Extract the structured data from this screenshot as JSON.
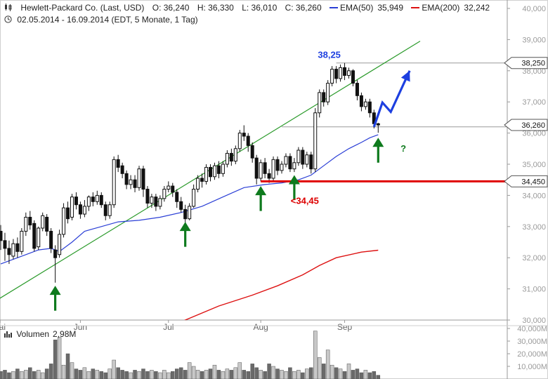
{
  "header": {
    "line1": {
      "title": "Hewlett-Packard Co. (Last, USD)",
      "open": "O: 36,240",
      "high": "H: 36,330",
      "low": "L: 36,010",
      "close": "C: 36,260",
      "ema50_label": "EMA(50)",
      "ema50_value": "35,949",
      "ema200_label": "EMA(200)",
      "ema200_value": "32,242"
    },
    "line2": "02.05.2014 - 16.09.2014 (EDT, 5 Monate, 1 Tag)",
    "icons": [
      "candlestick-icon",
      "clock-icon"
    ]
  },
  "colors": {
    "ema50": "#2b3fd6",
    "ema200": "#dd1111",
    "trendline": "#2a9a2a",
    "support": "#e00000",
    "arrows_up": "#0e7a1d",
    "arrow_forecast": "#1d3fe0",
    "volume": "#8a8a8a"
  },
  "chart_data": [
    {
      "type": "candlestick",
      "title": "",
      "ylim": [
        30000,
        40000
      ],
      "y_ticks": [
        "40,000",
        "39,000",
        "38,000",
        "37,000",
        "36,000",
        "35,000",
        "34,000",
        "33,000",
        "32,000",
        "31,000",
        "30,000"
      ],
      "x_ticks": [
        "Mai",
        "Jun",
        "Jul",
        "Aug",
        "Sep"
      ],
      "candles": [
        [
          32.85,
          32.55,
          33.05,
          32.25
        ],
        [
          32.55,
          32.3,
          32.8,
          31.9
        ],
        [
          32.3,
          32.1,
          32.55,
          31.8
        ],
        [
          32.05,
          32.45,
          32.6,
          31.95
        ],
        [
          32.45,
          32.2,
          32.65,
          32.0
        ],
        [
          32.2,
          32.85,
          32.95,
          32.1
        ],
        [
          32.85,
          33.3,
          33.45,
          32.7
        ],
        [
          33.3,
          33.05,
          33.5,
          32.9
        ],
        [
          33.1,
          32.3,
          33.2,
          32.2
        ],
        [
          32.35,
          32.95,
          33.0,
          32.25
        ],
        [
          32.95,
          33.35,
          33.45,
          32.85
        ],
        [
          33.3,
          32.85,
          33.4,
          32.7
        ],
        [
          32.85,
          32.3,
          32.95,
          32.15
        ],
        [
          32.25,
          32.0,
          32.4,
          31.2
        ],
        [
          32.1,
          32.75,
          32.9,
          32.0
        ],
        [
          32.75,
          33.6,
          33.75,
          32.65
        ],
        [
          33.6,
          33.25,
          33.8,
          33.1
        ],
        [
          33.3,
          33.95,
          34.05,
          33.2
        ],
        [
          33.95,
          33.7,
          34.1,
          33.55
        ],
        [
          33.7,
          33.4,
          33.8,
          33.25
        ],
        [
          33.4,
          33.65,
          33.85,
          33.3
        ],
        [
          33.65,
          33.95,
          34.0,
          33.5
        ],
        [
          33.95,
          33.8,
          34.1,
          33.65
        ],
        [
          33.8,
          34.0,
          34.15,
          33.7
        ],
        [
          34.0,
          33.7,
          34.1,
          33.6
        ],
        [
          33.7,
          33.35,
          33.8,
          33.2
        ],
        [
          33.35,
          33.7,
          33.8,
          33.25
        ],
        [
          33.7,
          35.15,
          35.25,
          33.6
        ],
        [
          35.15,
          34.9,
          35.3,
          34.75
        ],
        [
          34.95,
          34.7,
          35.05,
          34.55
        ],
        [
          34.7,
          34.35,
          34.8,
          34.2
        ],
        [
          34.35,
          34.5,
          34.65,
          34.2
        ],
        [
          34.5,
          34.25,
          34.65,
          34.1
        ],
        [
          34.25,
          34.85,
          34.95,
          34.15
        ],
        [
          34.85,
          34.2,
          34.95,
          33.95
        ],
        [
          34.2,
          33.75,
          34.3,
          33.6
        ],
        [
          33.75,
          33.95,
          34.05,
          33.6
        ],
        [
          33.95,
          33.65,
          34.05,
          33.5
        ],
        [
          33.65,
          33.9,
          34.0,
          33.55
        ],
        [
          33.9,
          34.2,
          34.3,
          33.8
        ],
        [
          34.2,
          34.3,
          34.45,
          34.1
        ],
        [
          34.3,
          34.1,
          34.4,
          33.95
        ],
        [
          34.1,
          33.8,
          34.2,
          33.6
        ],
        [
          33.8,
          33.55,
          33.95,
          33.45
        ],
        [
          33.55,
          33.25,
          33.7,
          33.1
        ],
        [
          33.25,
          33.65,
          33.75,
          33.2
        ],
        [
          33.65,
          34.2,
          34.35,
          33.6
        ],
        [
          34.2,
          34.55,
          34.65,
          34.1
        ],
        [
          34.55,
          34.45,
          34.7,
          34.25
        ],
        [
          34.45,
          34.9,
          35.0,
          34.35
        ],
        [
          34.9,
          34.6,
          35.0,
          34.45
        ],
        [
          34.6,
          34.95,
          35.05,
          34.5
        ],
        [
          34.95,
          34.7,
          35.1,
          34.55
        ],
        [
          34.7,
          35.0,
          35.1,
          34.6
        ],
        [
          35.0,
          35.35,
          35.45,
          34.9
        ],
        [
          35.35,
          35.1,
          35.5,
          34.95
        ],
        [
          35.1,
          35.5,
          35.6,
          35.0
        ],
        [
          35.5,
          36.0,
          36.1,
          35.4
        ],
        [
          36.0,
          35.9,
          36.25,
          35.75
        ],
        [
          35.9,
          35.6,
          36.0,
          35.4
        ],
        [
          35.6,
          35.2,
          35.7,
          35.05
        ],
        [
          35.2,
          34.55,
          35.3,
          34.35
        ],
        [
          34.55,
          35.05,
          35.15,
          34.45
        ],
        [
          35.05,
          34.7,
          35.2,
          34.55
        ],
        [
          34.7,
          34.55,
          34.85,
          34.4
        ],
        [
          34.55,
          35.15,
          35.25,
          34.45
        ],
        [
          35.15,
          34.8,
          35.25,
          34.65
        ],
        [
          34.8,
          35.0,
          35.1,
          34.7
        ],
        [
          35.0,
          35.25,
          35.35,
          34.9
        ],
        [
          35.25,
          34.85,
          35.35,
          34.75
        ],
        [
          34.85,
          35.05,
          35.2,
          34.75
        ],
        [
          35.05,
          35.45,
          35.55,
          34.95
        ],
        [
          35.45,
          35.0,
          35.55,
          34.85
        ],
        [
          35.0,
          35.3,
          35.4,
          34.9
        ],
        [
          35.3,
          34.85,
          35.4,
          34.7
        ],
        [
          34.85,
          36.65,
          36.8,
          34.75
        ],
        [
          36.65,
          37.3,
          37.4,
          36.5
        ],
        [
          37.3,
          37.0,
          37.4,
          36.85
        ],
        [
          37.0,
          37.6,
          37.7,
          36.9
        ],
        [
          37.6,
          38.05,
          38.15,
          37.5
        ],
        [
          38.05,
          37.75,
          38.15,
          37.6
        ],
        [
          37.75,
          38.1,
          38.2,
          37.65
        ],
        [
          38.1,
          37.85,
          38.25,
          37.7
        ],
        [
          37.85,
          38.0,
          38.1,
          37.75
        ],
        [
          38.0,
          37.6,
          38.05,
          37.5
        ],
        [
          37.6,
          37.2,
          37.7,
          37.05
        ],
        [
          37.2,
          36.85,
          37.3,
          36.7
        ],
        [
          36.85,
          37.0,
          37.1,
          36.75
        ],
        [
          37.0,
          36.65,
          37.1,
          36.5
        ],
        [
          36.65,
          36.3,
          36.75,
          36.15
        ],
        [
          36.3,
          36.26,
          36.33,
          36.01
        ]
      ],
      "ema50": [
        [
          0,
          31.8
        ],
        [
          3,
          31.95
        ],
        [
          6,
          32.1
        ],
        [
          9,
          32.25
        ],
        [
          12,
          32.3
        ],
        [
          14,
          32.2
        ],
        [
          17,
          32.5
        ],
        [
          20,
          32.85
        ],
        [
          24,
          33.0
        ],
        [
          28,
          33.15
        ],
        [
          33,
          33.2
        ],
        [
          38,
          33.3
        ],
        [
          43,
          33.45
        ],
        [
          48,
          33.65
        ],
        [
          53,
          33.95
        ],
        [
          58,
          34.25
        ],
        [
          63,
          34.35
        ],
        [
          67,
          34.4
        ],
        [
          71,
          34.5
        ],
        [
          74,
          34.65
        ],
        [
          77,
          34.95
        ],
        [
          80,
          35.25
        ],
        [
          83,
          35.5
        ],
        [
          86,
          35.7
        ],
        [
          88,
          35.85
        ],
        [
          90,
          35.949
        ]
      ],
      "ema200": [
        [
          38,
          29.6
        ],
        [
          44,
          30.0
        ],
        [
          52,
          30.45
        ],
        [
          60,
          30.8
        ],
        [
          66,
          31.1
        ],
        [
          72,
          31.45
        ],
        [
          76,
          31.75
        ],
        [
          80,
          32.0
        ],
        [
          86,
          32.18
        ],
        [
          90,
          32.242
        ]
      ],
      "trendline": [
        [
          -2,
          30.55
        ],
        [
          100,
          38.95
        ]
      ],
      "resistance_line": {
        "from": 67,
        "y": 36.2
      },
      "peak_line": {
        "from": 80,
        "y": 38.25
      },
      "support_line": {
        "from": 62,
        "y": 34.45
      },
      "annotations": {
        "peak_label": "38,25",
        "support_label": "<34,45",
        "question_mark": "?",
        "price_tags": [
          "38,250",
          "36,260",
          "34,450"
        ]
      },
      "up_arrows": [
        {
          "x": 13,
          "tip": 31.1,
          "base": 30.3
        },
        {
          "x": 44,
          "tip": 33.15,
          "base": 32.35
        },
        {
          "x": 62,
          "tip": 34.3,
          "base": 33.5
        },
        {
          "x": 70,
          "tip": 34.65,
          "base": 33.85
        },
        {
          "x": 90,
          "tip": 35.85,
          "base": 35.05
        }
      ],
      "forecast_arrow": [
        [
          89,
          36.2
        ],
        [
          91,
          36.98
        ],
        [
          93,
          36.68
        ],
        [
          97.5,
          38.0
        ]
      ]
    },
    {
      "type": "bar",
      "title": "Volumen",
      "subtitle": "2,98M",
      "ylim": [
        0,
        40
      ],
      "y_ticks": [
        "40,000M",
        "30,000M",
        "20,000M",
        "10,000M"
      ],
      "values": [
        6,
        7,
        5,
        6,
        8,
        6,
        7,
        9,
        6,
        7,
        5,
        8,
        12,
        31,
        33,
        11,
        20,
        13,
        8,
        7,
        9,
        6,
        8,
        7,
        6,
        5,
        8,
        15,
        9,
        7,
        6,
        5,
        7,
        6,
        8,
        6,
        7,
        6,
        5,
        7,
        5,
        6,
        8,
        9,
        7,
        13,
        10,
        7,
        6,
        7,
        8,
        11,
        7,
        6,
        8,
        7,
        9,
        13,
        7,
        6,
        12,
        9,
        7,
        6,
        12,
        10,
        8,
        7,
        6,
        9,
        6,
        7,
        5,
        8,
        9,
        38,
        17,
        12,
        23,
        11,
        9,
        8,
        6,
        12,
        7,
        8,
        5,
        7,
        5,
        6,
        2.98
      ]
    }
  ]
}
